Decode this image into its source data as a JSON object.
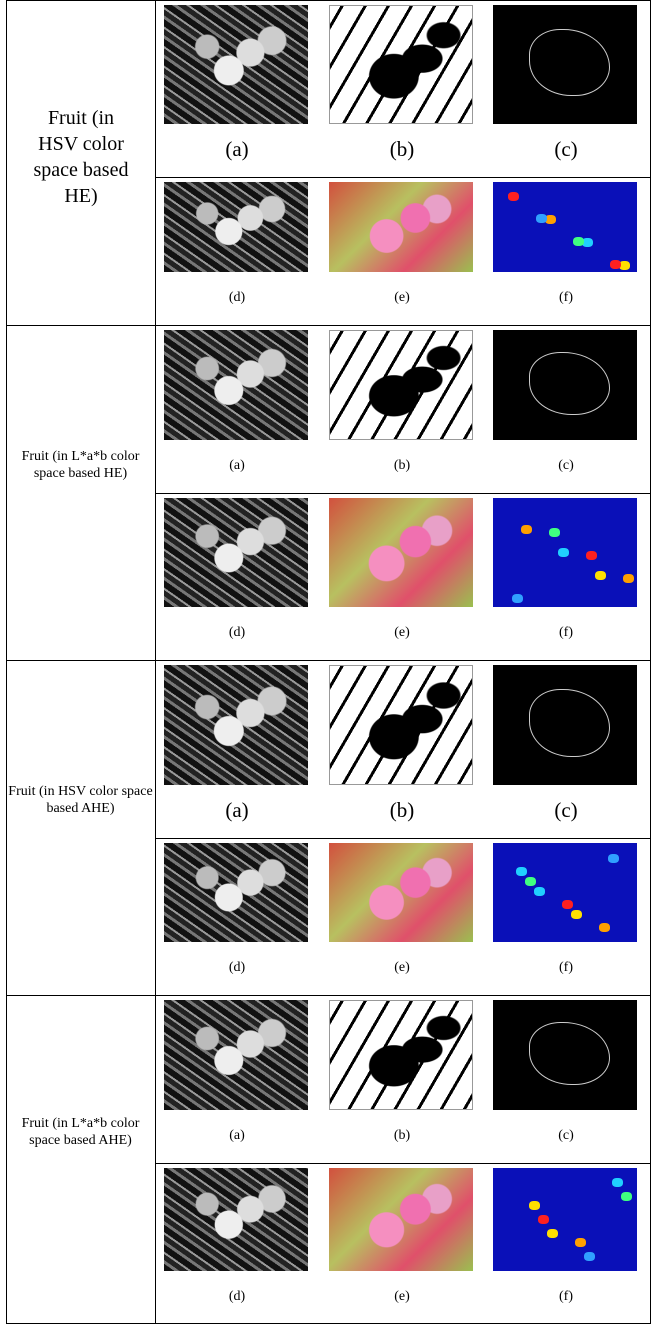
{
  "groups": [
    {
      "label": "Fruit (in HSV color space based HE)",
      "rows": [
        [
          "(a)",
          "(b)",
          "(c)"
        ],
        [
          "(d)",
          "(e)",
          "(f)"
        ]
      ]
    },
    {
      "label": "Fruit (in L*a*b color space based HE)",
      "rows": [
        [
          "(a)",
          "(b)",
          "(c)"
        ],
        [
          "(d)",
          "(e)",
          "(f)"
        ]
      ]
    },
    {
      "label": "Fruit (in HSV color space based AHE)",
      "rows": [
        [
          "(a)",
          "(b)",
          "(c)"
        ],
        [
          "(d)",
          "(e)",
          "(f)"
        ]
      ]
    },
    {
      "label": "Fruit (in L*a*b color space based AHE)",
      "rows": [
        [
          "(a)",
          "(b)",
          "(c)"
        ],
        [
          "(d)",
          "(e)",
          "(f)"
        ]
      ]
    }
  ]
}
